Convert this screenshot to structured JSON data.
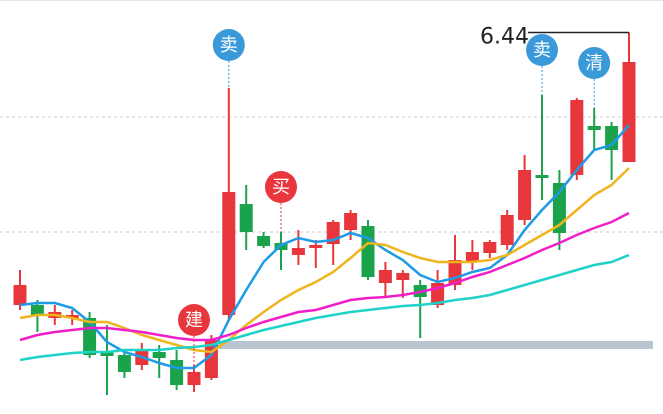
{
  "chart_data": {
    "type": "candlestick",
    "ylim": [
      4.914,
      6.57
    ],
    "grid_lines": [
      6.102,
      5.642
    ],
    "reference_line": 5.19,
    "up_color": "#e8373c",
    "down_color": "#1aa34a",
    "open": [
      5.35,
      5.35,
      5.298,
      5.298,
      5.298,
      5.162,
      5.15,
      5.11,
      5.162,
      5.13,
      5.03,
      5.058,
      5.31,
      5.754,
      5.626,
      5.598,
      5.55,
      5.578,
      5.594,
      5.65,
      5.666,
      5.438,
      5.45,
      5.43,
      5.35,
      5.43,
      5.522,
      5.558,
      5.59,
      5.69,
      5.87,
      5.838,
      5.87,
      6.066,
      6.066,
      5.922
    ],
    "close": [
      5.43,
      5.31,
      5.322,
      5.31,
      5.15,
      5.146,
      5.082,
      5.17,
      5.138,
      5.03,
      5.082,
      5.21,
      5.802,
      5.642,
      5.586,
      5.57,
      5.578,
      5.59,
      5.682,
      5.718,
      5.462,
      5.49,
      5.478,
      5.382,
      5.438,
      5.53,
      5.562,
      5.602,
      5.71,
      5.89,
      5.858,
      5.638,
      6.17,
      6.05,
      5.97,
      6.322
    ],
    "high": [
      5.49,
      5.37,
      5.35,
      5.33,
      5.322,
      5.27,
      5.17,
      5.198,
      5.19,
      5.17,
      5.11,
      5.23,
      6.218,
      5.83,
      5.642,
      5.642,
      5.65,
      5.61,
      5.69,
      5.73,
      5.69,
      5.522,
      5.49,
      5.45,
      5.49,
      5.63,
      5.61,
      5.61,
      5.73,
      5.95,
      6.19,
      5.89,
      6.178,
      6.138,
      6.082,
      6.44
    ],
    "low": [
      5.33,
      5.242,
      5.27,
      5.27,
      5.138,
      4.99,
      5.058,
      5.09,
      5.058,
      5.01,
      5.002,
      5.05,
      5.29,
      5.57,
      5.578,
      5.49,
      5.51,
      5.498,
      5.51,
      5.61,
      5.45,
      5.386,
      5.378,
      5.218,
      5.338,
      5.41,
      5.49,
      5.538,
      5.57,
      5.67,
      5.77,
      5.57,
      5.85,
      5.97,
      5.85,
      5.922
    ],
    "series": [
      {
        "color": "#1e9be6",
        "values": [
          5.35,
          5.358,
          5.358,
          5.338,
          5.282,
          5.202,
          5.162,
          5.142,
          5.118,
          5.098,
          5.098,
          5.15,
          5.29,
          5.41,
          5.522,
          5.59,
          5.618,
          5.602,
          5.61,
          5.638,
          5.618,
          5.57,
          5.53,
          5.47,
          5.442,
          5.458,
          5.482,
          5.498,
          5.55,
          5.65,
          5.73,
          5.802,
          5.89,
          5.97,
          5.99,
          6.07
        ]
      },
      {
        "color": "#f0b41e",
        "values": [
          5.298,
          5.31,
          5.31,
          5.298,
          5.282,
          5.282,
          5.258,
          5.23,
          5.21,
          5.19,
          5.17,
          5.162,
          5.21,
          5.27,
          5.322,
          5.37,
          5.41,
          5.442,
          5.482,
          5.538,
          5.598,
          5.59,
          5.562,
          5.538,
          5.522,
          5.522,
          5.522,
          5.53,
          5.55,
          5.59,
          5.63,
          5.67,
          5.73,
          5.79,
          5.83,
          5.898
        ]
      },
      {
        "color": "#f01ec8",
        "values": [
          5.21,
          5.23,
          5.242,
          5.25,
          5.258,
          5.258,
          5.25,
          5.242,
          5.23,
          5.218,
          5.21,
          5.21,
          5.23,
          5.258,
          5.282,
          5.302,
          5.322,
          5.33,
          5.35,
          5.37,
          5.378,
          5.382,
          5.39,
          5.402,
          5.418,
          5.438,
          5.462,
          5.482,
          5.51,
          5.538,
          5.57,
          5.598,
          5.63,
          5.658,
          5.682,
          5.718
        ]
      },
      {
        "color": "#1ed2c8",
        "values": [
          5.13,
          5.142,
          5.15,
          5.158,
          5.162,
          5.162,
          5.17,
          5.17,
          5.17,
          5.178,
          5.182,
          5.19,
          5.21,
          5.23,
          5.25,
          5.266,
          5.282,
          5.298,
          5.31,
          5.322,
          5.33,
          5.338,
          5.346,
          5.35,
          5.358,
          5.37,
          5.378,
          5.39,
          5.41,
          5.43,
          5.45,
          5.47,
          5.49,
          5.51,
          5.522,
          5.55
        ]
      }
    ],
    "signals": [
      {
        "label": "卖",
        "at": 12,
        "color": "#3a9ad9"
      },
      {
        "label": "买",
        "at": 15,
        "color": "#e8373c"
      },
      {
        "label": "建",
        "at": 10,
        "color": "#e8373c"
      },
      {
        "label": "卖",
        "at": 30,
        "color": "#3a9ad9"
      },
      {
        "label": "清",
        "at": 33,
        "color": "#3a9ad9"
      }
    ]
  }
}
